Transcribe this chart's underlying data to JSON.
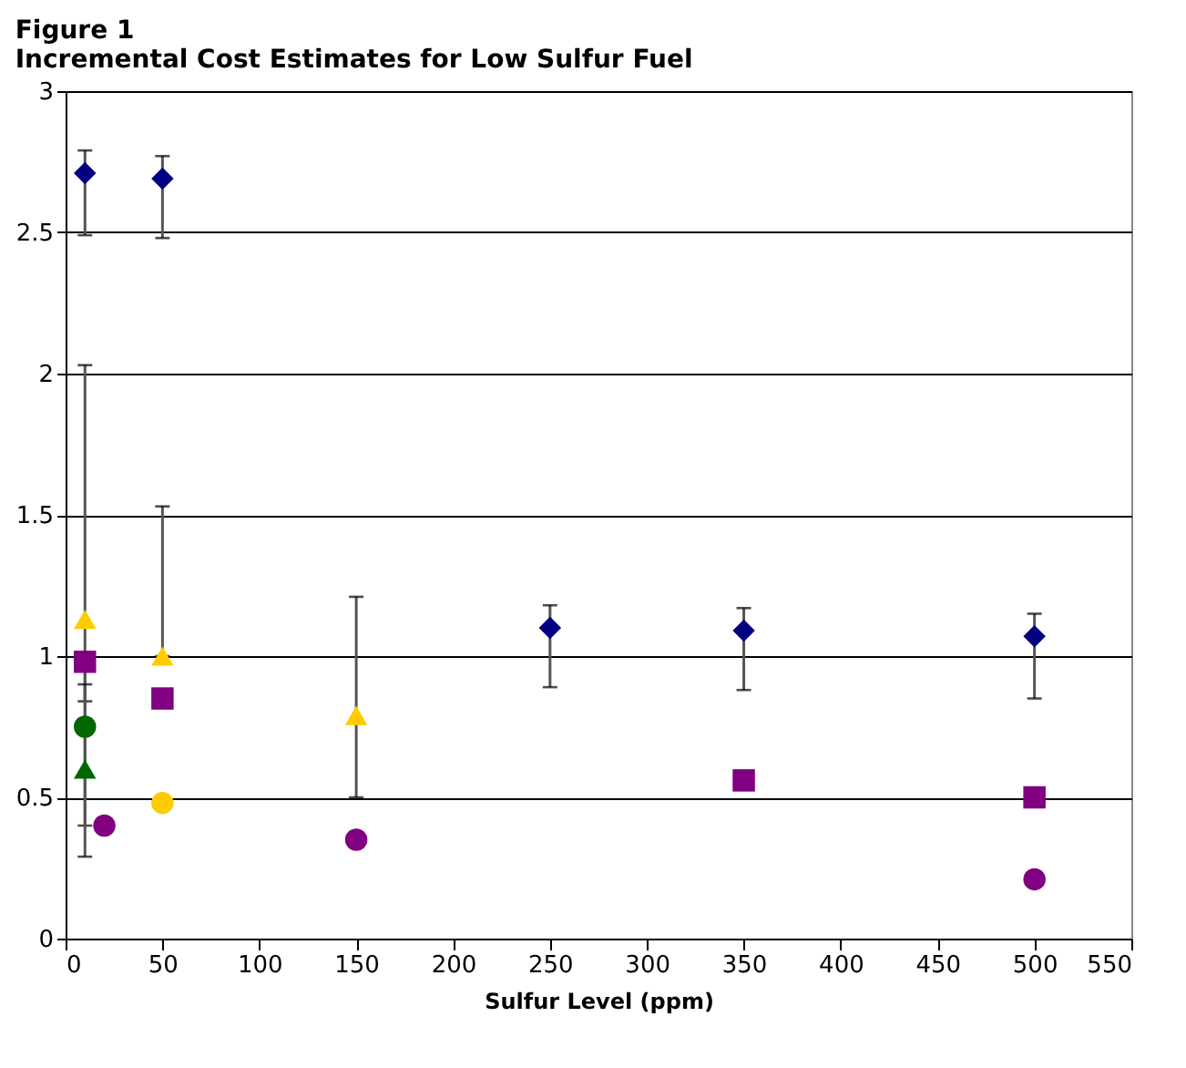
{
  "chart_data": {
    "type": "scatter",
    "title": "Figure 1",
    "subtitle": "Incremental Cost Estimates for Low Sulfur Fuel",
    "xlabel": "Sulfur Level (ppm)",
    "xlim": [
      0,
      550
    ],
    "xticks": [
      0,
      50,
      100,
      150,
      200,
      250,
      300,
      350,
      400,
      450,
      500,
      550
    ],
    "ylim": [
      0,
      3
    ],
    "yticks": [
      0,
      0.5,
      1,
      1.5,
      2,
      2.5,
      3
    ],
    "grid": "y",
    "series": [
      {
        "color": "#000080",
        "marker": "diamond",
        "x": [
          10,
          50,
          250,
          350,
          500
        ],
        "values": [
          2.71,
          2.69,
          1.1,
          1.09,
          1.07
        ],
        "errors": [
          [
            2.49,
            2.79
          ],
          [
            2.48,
            2.77
          ],
          [
            0.89,
            1.18
          ],
          [
            0.88,
            1.17
          ],
          [
            0.85,
            1.15
          ]
        ]
      },
      {
        "color": "#ffcc00",
        "marker": "triangle",
        "x": [
          10,
          50,
          150
        ],
        "values": [
          1.13,
          1.0,
          0.79
        ],
        "errors": [
          [
            0.4,
            2.03
          ],
          [
            1.0,
            1.53
          ],
          [
            0.5,
            1.21
          ]
        ]
      },
      {
        "color": "#800080",
        "marker": "square",
        "x": [
          10,
          50,
          350,
          500
        ],
        "values": [
          0.98,
          0.85,
          0.56,
          0.5
        ],
        "errors": [
          [
            0.84,
            0.98
          ],
          null,
          null,
          null
        ]
      },
      {
        "color": "#006600",
        "marker": "circle",
        "x": [
          10
        ],
        "values": [
          0.75
        ],
        "errors": [
          [
            0.29,
            0.9
          ]
        ]
      },
      {
        "color": "#006600",
        "marker": "triangle",
        "x": [
          10
        ],
        "values": [
          0.6
        ]
      },
      {
        "color": "#ffcc00",
        "marker": "circle",
        "x": [
          50
        ],
        "values": [
          0.48
        ]
      },
      {
        "color": "#800080",
        "marker": "circle",
        "x": [
          20,
          150,
          500
        ],
        "values": [
          0.4,
          0.35,
          0.21
        ]
      }
    ]
  }
}
